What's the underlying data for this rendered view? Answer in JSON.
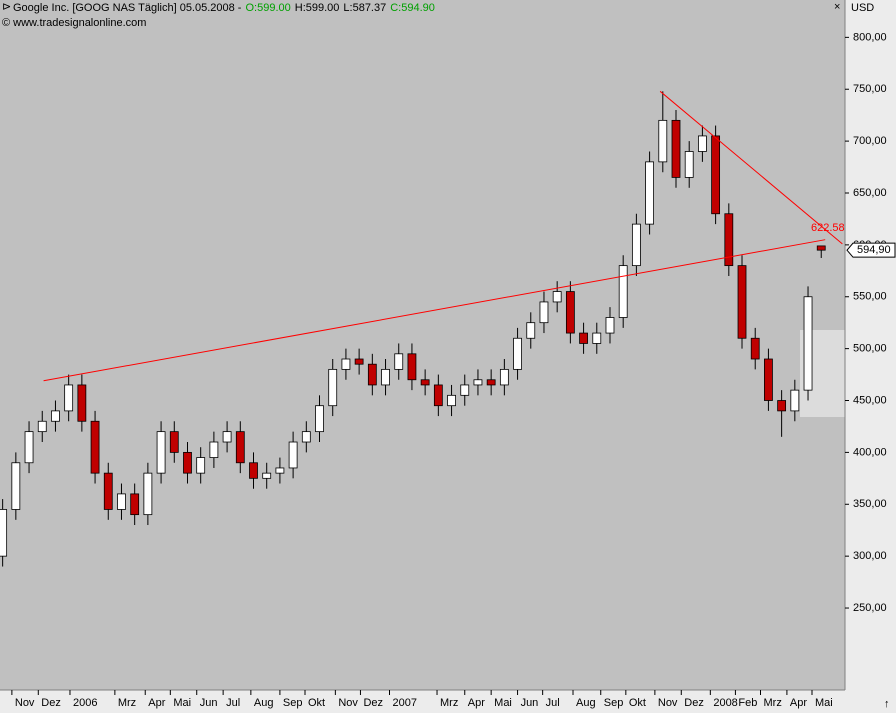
{
  "chart_data": {
    "type": "candlestick",
    "title": "Google Inc. [GOOG NAS  Täglich] 05.05.2008 -",
    "header_values": [
      {
        "text": "O:599.00",
        "color": "#00a000"
      },
      {
        "text": "H:599.00",
        "color": "#000000"
      },
      {
        "text": "L:587.37",
        "color": "#000000"
      },
      {
        "text": "C:594.90",
        "color": "#00a000"
      }
    ],
    "subtitle": "© www.tradesignalonline.com",
    "axis_unit": "USD",
    "last_label": "594,90",
    "open": [
      300,
      345,
      390,
      420,
      430,
      440,
      465,
      430,
      380,
      345,
      360,
      340,
      380,
      420,
      400,
      380,
      395,
      410,
      420,
      390,
      375,
      380,
      385,
      410,
      420,
      445,
      480,
      490,
      485,
      465,
      480,
      495,
      470,
      465,
      445,
      455,
      465,
      470,
      465,
      480,
      510,
      525,
      545,
      555,
      515,
      505,
      515,
      530,
      580,
      620,
      680,
      720,
      665,
      690,
      705,
      630,
      580,
      510,
      490,
      450,
      440,
      460,
      599
    ],
    "high": [
      355,
      400,
      430,
      440,
      450,
      475,
      475,
      440,
      390,
      370,
      370,
      390,
      430,
      430,
      410,
      405,
      420,
      430,
      430,
      400,
      390,
      395,
      420,
      430,
      455,
      490,
      500,
      500,
      495,
      490,
      505,
      505,
      480,
      475,
      465,
      475,
      480,
      480,
      490,
      520,
      535,
      555,
      565,
      565,
      525,
      525,
      540,
      590,
      630,
      690,
      748,
      730,
      700,
      715,
      715,
      640,
      590,
      520,
      500,
      460,
      470,
      560,
      599
    ],
    "low": [
      290,
      335,
      380,
      410,
      420,
      430,
      420,
      370,
      335,
      335,
      330,
      330,
      370,
      390,
      370,
      370,
      385,
      400,
      380,
      365,
      365,
      370,
      375,
      400,
      410,
      435,
      470,
      475,
      455,
      455,
      470,
      460,
      455,
      435,
      435,
      445,
      455,
      455,
      455,
      470,
      500,
      515,
      535,
      505,
      495,
      495,
      505,
      520,
      570,
      610,
      670,
      655,
      655,
      680,
      620,
      570,
      500,
      480,
      440,
      415,
      430,
      450,
      587.37
    ],
    "close": [
      345,
      390,
      420,
      430,
      440,
      465,
      430,
      380,
      345,
      360,
      340,
      380,
      420,
      400,
      380,
      395,
      410,
      420,
      390,
      375,
      380,
      385,
      410,
      420,
      445,
      480,
      490,
      485,
      465,
      480,
      495,
      470,
      465,
      445,
      455,
      465,
      470,
      465,
      480,
      510,
      525,
      545,
      555,
      515,
      505,
      515,
      530,
      580,
      620,
      680,
      720,
      665,
      690,
      705,
      630,
      580,
      510,
      490,
      450,
      440,
      460,
      550,
      594.9
    ],
    "up_color": "#ffffff",
    "down_color": "#c00000",
    "xlim": [
      -0.2,
      63.8
    ],
    "ylim": [
      171,
      836
    ],
    "yticks": [
      {
        "value": 250,
        "label": "250,00"
      },
      {
        "value": 300,
        "label": "300,00"
      },
      {
        "value": 350,
        "label": "350,00"
      },
      {
        "value": 400,
        "label": "400,00"
      },
      {
        "value": 450,
        "label": "450,00"
      },
      {
        "value": 500,
        "label": "500,00"
      },
      {
        "value": 550,
        "label": "550,00"
      },
      {
        "value": 600,
        "label": "600,00"
      },
      {
        "value": 650,
        "label": "650,00"
      },
      {
        "value": 700,
        "label": "700,00"
      },
      {
        "value": 750,
        "label": "750,00"
      },
      {
        "value": 800,
        "label": "800,00"
      }
    ],
    "xticks": [
      {
        "value": 0.7,
        "label": "Nov"
      },
      {
        "value": 2.7,
        "label": "Dez"
      },
      {
        "value": 5.1,
        "label": "2006"
      },
      {
        "value": 8.5,
        "label": "Mrz"
      },
      {
        "value": 10.8,
        "label": "Apr"
      },
      {
        "value": 12.7,
        "label": "Mai"
      },
      {
        "value": 14.7,
        "label": "Jun"
      },
      {
        "value": 16.7,
        "label": "Jul"
      },
      {
        "value": 18.8,
        "label": "Aug"
      },
      {
        "value": 21.0,
        "label": "Sep"
      },
      {
        "value": 22.9,
        "label": "Okt"
      },
      {
        "value": 25.2,
        "label": "Nov"
      },
      {
        "value": 27.1,
        "label": "Dez"
      },
      {
        "value": 29.3,
        "label": "2007"
      },
      {
        "value": 32.9,
        "label": "Mrz"
      },
      {
        "value": 35.0,
        "label": "Apr"
      },
      {
        "value": 37.0,
        "label": "Mai"
      },
      {
        "value": 39.0,
        "label": "Jun"
      },
      {
        "value": 40.9,
        "label": "Jul"
      },
      {
        "value": 43.2,
        "label": "Aug"
      },
      {
        "value": 45.3,
        "label": "Sep"
      },
      {
        "value": 47.2,
        "label": "Okt"
      },
      {
        "value": 49.4,
        "label": "Nov"
      },
      {
        "value": 51.4,
        "label": "Dez"
      },
      {
        "value": 53.6,
        "label": "2008"
      },
      {
        "value": 55.5,
        "label": "Feb"
      },
      {
        "value": 57.4,
        "label": "Mrz"
      },
      {
        "value": 59.4,
        "label": "Apr"
      },
      {
        "value": 61.3,
        "label": "Mai"
      }
    ],
    "lines": [
      {
        "x": [
          3.1,
          62.3
        ],
        "y": [
          469,
          605
        ],
        "color": "#ff0000"
      },
      {
        "x": [
          49.8,
          63.6
        ],
        "y": [
          748,
          601
        ],
        "color": "#ff0000"
      }
    ],
    "annotation": {
      "text": "622.58",
      "color": "#ff0000"
    }
  }
}
